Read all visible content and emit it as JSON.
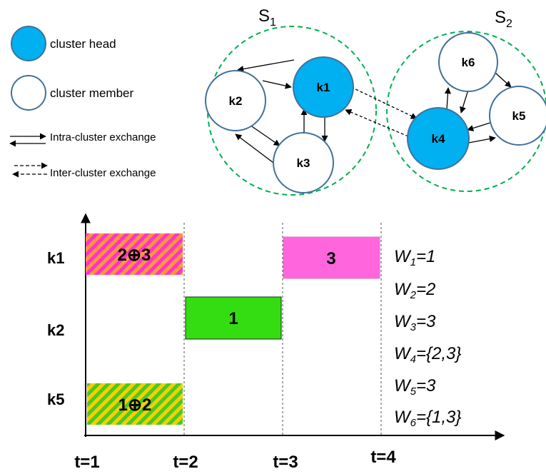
{
  "legend": {
    "head": "cluster head",
    "member": "cluster member",
    "intra": "Intra-cluster exchange",
    "inter": "Inter-cluster exchange"
  },
  "sets": [
    {
      "letter": "S",
      "sub": "1"
    },
    {
      "letter": "S",
      "sub": "2"
    }
  ],
  "nodes": {
    "k1": "k1",
    "k2": "k2",
    "k3": "k3",
    "k4": "k4",
    "k5": "k5",
    "k6": "k6"
  },
  "rows": [
    "k1",
    "k2",
    "k5"
  ],
  "times": [
    "t=1",
    "t=2",
    "t=3",
    "t=4"
  ],
  "bars": [
    {
      "label": "2⊕3"
    },
    {
      "label": "3"
    },
    {
      "label": "1"
    },
    {
      "label": "1⊕2"
    }
  ],
  "wants": [
    {
      "w": "W",
      "sub": "1",
      "val": "=1"
    },
    {
      "w": "W",
      "sub": "2",
      "val": "=2"
    },
    {
      "w": "W",
      "sub": "3",
      "val": "=3"
    },
    {
      "w": "W",
      "sub": "4",
      "val": "={2,3}"
    },
    {
      "w": "W",
      "sub": "5",
      "val": "=3"
    },
    {
      "w": "W",
      "sub": "6",
      "val": "={1,3}"
    }
  ],
  "colors": {
    "head_fill": "#00b0f0",
    "node_stroke": "#41719c",
    "dash_circle": "#00b050",
    "bar_k1_t1_stripe_a": "#ff9933",
    "bar_k1_t1_stripe_b": "#ff33cc",
    "bar_pink": "#ff66dd",
    "bar_green": "#33dd11",
    "bar_k5_stripe_a": "#ffcc00",
    "bar_k5_stripe_b": "#44cc22"
  }
}
